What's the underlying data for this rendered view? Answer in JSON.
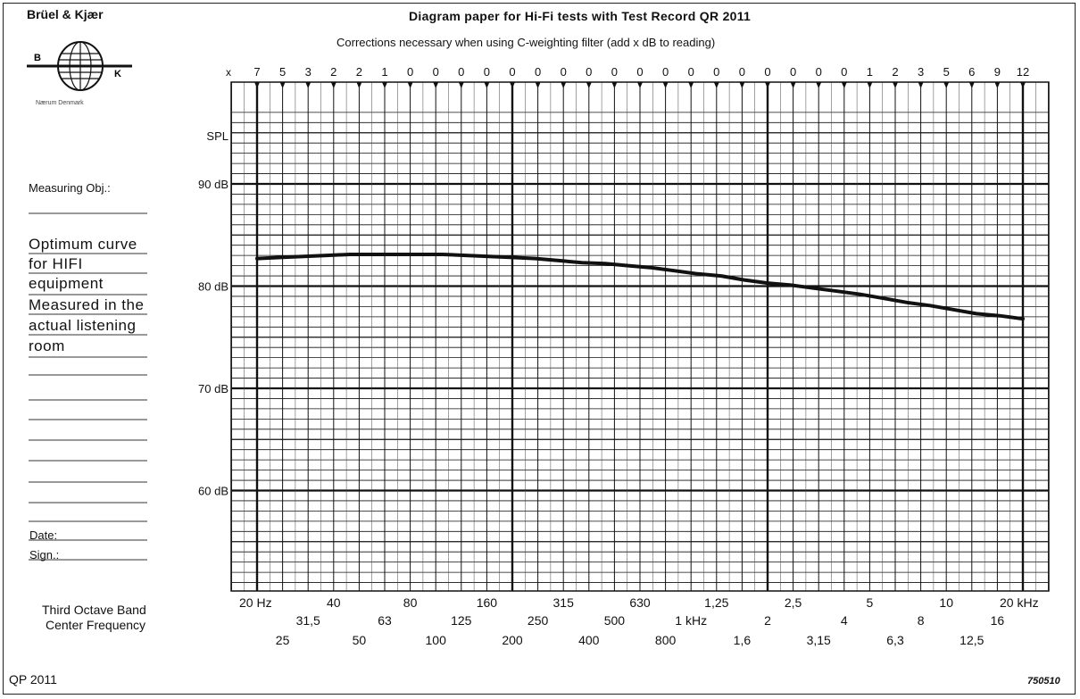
{
  "header": {
    "brand": "Brüel & Kjær",
    "logo_letters": [
      "B",
      "K"
    ],
    "city": "Nærum Denmark",
    "title": "Diagram paper for Hi-Fi tests with Test Record QR 2011",
    "subtitle": "Corrections necessary when using C-weighting filter (add x dB to reading)"
  },
  "form": {
    "measuring_label": "Measuring Obj.:",
    "notes": [
      "Optimum curve",
      "for HIFI",
      "equipment",
      "Measured in the",
      "actual listening",
      "room"
    ],
    "date_label": "Date:",
    "sign_label": "Sign.:"
  },
  "band_label": [
    "Third Octave Band",
    "Center Frequency"
  ],
  "footer": {
    "code": "QP 2011",
    "number": "750510"
  },
  "colors": {
    "ink": "#111111",
    "paper": "#ffffff"
  },
  "chart_data": {
    "type": "line",
    "title": "Diagram paper for Hi-Fi tests with Test Record QR 2011",
    "xlabel": "Third Octave Band Center Frequency",
    "ylabel": "SPL",
    "x_scale": "log",
    "xlim": [
      "20 Hz",
      "20 kHz"
    ],
    "ylim": [
      50,
      97
    ],
    "grid": true,
    "y_ticks": [
      {
        "value": 90,
        "label": "90 dB"
      },
      {
        "value": 80,
        "label": "80 dB"
      },
      {
        "value": 70,
        "label": "70 dB"
      },
      {
        "value": 60,
        "label": "60 dB"
      }
    ],
    "y_top_label": "SPL",
    "correction_prefix": "x",
    "c_weighting_corrections": [
      "7",
      "5",
      "3",
      "2",
      "2",
      "1",
      "0",
      "0",
      "0",
      "0",
      "0",
      "0",
      "0",
      "0",
      "0",
      "0",
      "0",
      "0",
      "0",
      "0",
      "0",
      "0",
      "0",
      "0",
      "1",
      "2",
      "3",
      "5",
      "6",
      "9",
      "12"
    ],
    "freq_row1": [
      "20 Hz",
      "40",
      "80",
      "160",
      "315",
      "630",
      "1,25",
      "2,5",
      "5",
      "10",
      "20 kHz"
    ],
    "freq_row2": [
      "31,5",
      "63",
      "125",
      "250",
      "500",
      "1 kHz",
      "2",
      "4",
      "8",
      "16"
    ],
    "freq_row3": [
      "25",
      "50",
      "100",
      "200",
      "400",
      "800",
      "1,6",
      "3,15",
      "6,3",
      "12,5"
    ],
    "series": [
      {
        "values": [
          82.7,
          82.8,
          82.9,
          83.0,
          83.1,
          83.1,
          83.1,
          83.1,
          83.1,
          83.0,
          82.9,
          82.8,
          82.7,
          82.5,
          82.3,
          82.2,
          82.0,
          81.8,
          81.5,
          81.2,
          81.0,
          80.6,
          80.3,
          80.1,
          79.8,
          79.5,
          79.2,
          78.8,
          78.4,
          78.1,
          77.7,
          77.3,
          77.1,
          76.8
        ]
      }
    ]
  }
}
